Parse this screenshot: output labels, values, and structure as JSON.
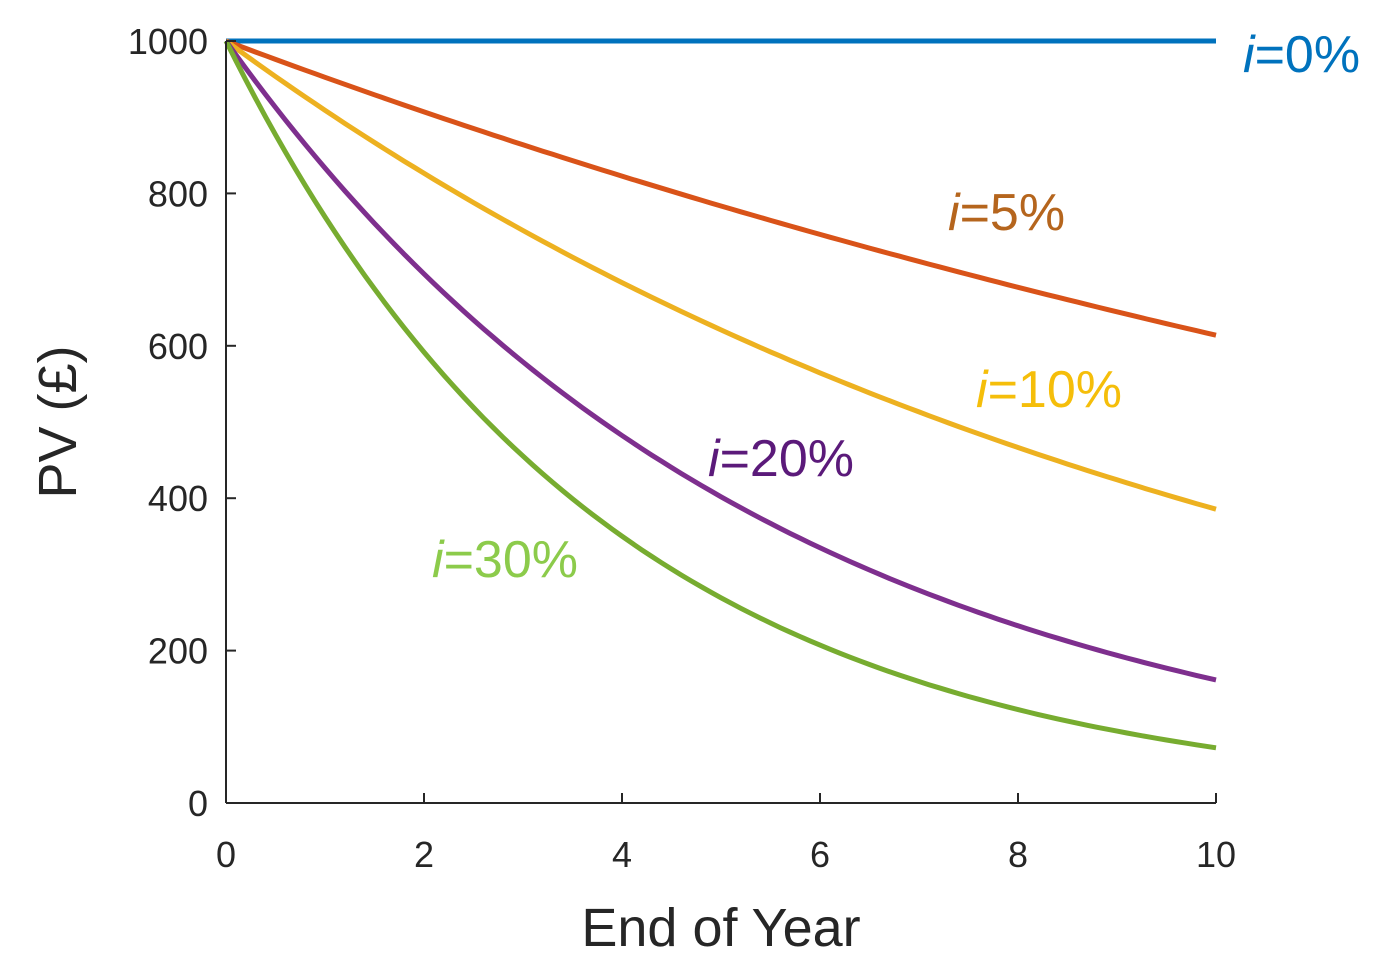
{
  "chart_data": {
    "type": "line",
    "xlabel": "End of Year",
    "ylabel": "PV (£)",
    "xlim": [
      0,
      10
    ],
    "ylim": [
      0,
      1000
    ],
    "xticks": [
      "0",
      "2",
      "4",
      "6",
      "8",
      "10"
    ],
    "yticks": [
      "0",
      "200",
      "400",
      "600",
      "800",
      "1000"
    ],
    "grid": false,
    "x": [
      0,
      1,
      2,
      3,
      4,
      5,
      6,
      7,
      8,
      9,
      10
    ],
    "series": [
      {
        "label_prefix": "i",
        "label_suffix": "=0%",
        "color": "#0072BD",
        "label_color": "#0072BD",
        "values": [
          1000,
          1000,
          1000,
          1000,
          1000,
          1000,
          1000,
          1000,
          1000,
          1000,
          1000
        ]
      },
      {
        "label_prefix": "i",
        "label_suffix": "=5%",
        "color": "#D95319",
        "label_color": "#B5651D",
        "values": [
          1000,
          952.4,
          907.0,
          863.8,
          822.7,
          783.5,
          746.2,
          710.7,
          676.8,
          644.6,
          613.9
        ]
      },
      {
        "label_prefix": "i",
        "label_suffix": "=10%",
        "color": "#EDB120",
        "label_color": "#F5BE0A",
        "values": [
          1000,
          909.1,
          826.4,
          751.3,
          683.0,
          620.9,
          564.5,
          513.2,
          466.5,
          424.1,
          385.5
        ]
      },
      {
        "label_prefix": "i",
        "label_suffix": "=20%",
        "color": "#7E2F8E",
        "label_color": "#5B1A7A",
        "values": [
          1000,
          833.3,
          694.4,
          578.7,
          482.3,
          401.9,
          334.9,
          279.1,
          232.6,
          193.8,
          161.5
        ]
      },
      {
        "label_prefix": "i",
        "label_suffix": "=30%",
        "color": "#77AC30",
        "label_color": "#8CCB4B",
        "values": [
          1000,
          769.2,
          591.7,
          455.2,
          350.1,
          269.3,
          207.2,
          159.4,
          122.6,
          94.3,
          72.5
        ]
      }
    ]
  }
}
